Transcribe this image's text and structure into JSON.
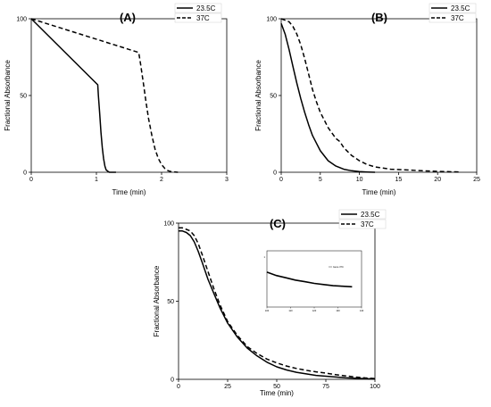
{
  "chart_data": [
    {
      "id": "A",
      "type": "line",
      "panel_label": "(A)",
      "xlabel": "Time (min)",
      "ylabel": "Fractional Absorbance",
      "xlim": [
        0,
        3
      ],
      "ylim": [
        0,
        100
      ],
      "xticks": [
        0,
        1,
        2,
        3
      ],
      "yticks": [
        0,
        50,
        100
      ],
      "grid": false,
      "legend": "top-right",
      "series": [
        {
          "name": "23.5C",
          "style": "solid",
          "x": [
            0,
            1.02,
            1.03,
            1.05,
            1.07,
            1.09,
            1.11,
            1.13,
            1.15,
            1.18,
            1.2,
            1.25,
            1.3
          ],
          "y": [
            100,
            57,
            50,
            38,
            26,
            16,
            9,
            4,
            1.5,
            0.5,
            0,
            0,
            0
          ]
        },
        {
          "name": "37C",
          "style": "dashed",
          "x": [
            0,
            1.65,
            1.68,
            1.72,
            1.76,
            1.8,
            1.85,
            1.9,
            1.95,
            2.0,
            2.05,
            2.1,
            2.15,
            2.25
          ],
          "y": [
            100,
            78,
            70,
            58,
            46,
            35,
            24,
            15,
            9,
            5,
            2.5,
            1,
            0.4,
            0
          ]
        }
      ]
    },
    {
      "id": "B",
      "type": "line",
      "panel_label": "(B)",
      "xlabel": "Time (min)",
      "ylabel": "Fractional Absorbance",
      "xlim": [
        0,
        25
      ],
      "ylim": [
        0,
        100
      ],
      "xticks": [
        0,
        5,
        10,
        15,
        20,
        25
      ],
      "yticks": [
        0,
        50,
        100
      ],
      "grid": false,
      "legend": "top-right",
      "series": [
        {
          "name": "23.5C",
          "style": "solid",
          "x": [
            0,
            0.5,
            1,
            1.5,
            2,
            2.5,
            3,
            3.5,
            4,
            4.5,
            5,
            6,
            7,
            8,
            9,
            10,
            11,
            12
          ],
          "y": [
            97,
            90,
            80,
            69,
            58,
            48,
            39,
            31,
            24,
            19,
            14,
            7.5,
            4,
            2,
            1,
            0.4,
            0.2,
            0
          ]
        },
        {
          "name": "37C",
          "style": "dashed",
          "x": [
            0,
            0.5,
            1,
            1.5,
            2,
            2.5,
            3,
            3.5,
            4,
            4.5,
            5,
            6,
            7,
            7.5,
            8,
            9,
            10,
            11,
            12,
            14,
            16,
            18,
            20,
            22,
            23
          ],
          "y": [
            100,
            99,
            98,
            95,
            90,
            83,
            74,
            64,
            54,
            46,
            39,
            29,
            22,
            20,
            16,
            11,
            7.5,
            5,
            3.5,
            2,
            1.5,
            1,
            0.6,
            0.3,
            0.2
          ]
        }
      ]
    },
    {
      "id": "C",
      "type": "line",
      "panel_label": "(C)",
      "xlabel": "Time (min)",
      "ylabel": "Fractional Absorbance",
      "xlim": [
        0,
        100
      ],
      "ylim": [
        0,
        100
      ],
      "xticks": [
        0,
        25,
        50,
        75,
        100
      ],
      "yticks": [
        0,
        50,
        100
      ],
      "grid": false,
      "legend": "top-right",
      "series": [
        {
          "name": "23.5C",
          "style": "solid",
          "x": [
            0,
            2,
            4,
            6,
            8,
            10,
            12,
            15,
            18,
            21,
            25,
            30,
            35,
            40,
            45,
            50,
            55,
            60,
            65,
            70,
            75,
            80,
            85,
            90,
            95,
            100
          ],
          "y": [
            95,
            95,
            94,
            92,
            88,
            82,
            75,
            64,
            55,
            46,
            36,
            27,
            20,
            15,
            11,
            8,
            6,
            4.5,
            3.5,
            2.5,
            2,
            1.5,
            1,
            0.7,
            0.4,
            0.2
          ]
        },
        {
          "name": "37C",
          "style": "dashed",
          "x": [
            0,
            2,
            4,
            6,
            8,
            10,
            12,
            15,
            18,
            21,
            25,
            30,
            35,
            40,
            45,
            50,
            55,
            60,
            65,
            70,
            75,
            80,
            85,
            90,
            95,
            100
          ],
          "y": [
            97,
            97,
            96,
            95,
            92,
            87,
            80,
            69,
            58,
            48,
            37,
            28,
            21,
            16.5,
            13,
            10.5,
            8.5,
            7,
            5.8,
            4.8,
            4,
            3,
            2.2,
            1.5,
            0.9,
            0.5
          ]
        }
      ],
      "inset": {
        "legend_text": "Gene 37C",
        "xtick_labels": [
          "100",
          "110",
          "120",
          "130",
          "140"
        ],
        "ytick_labels": [
          "1"
        ],
        "series": {
          "x": [
            100,
            104,
            108,
            112,
            116,
            120,
            124,
            128,
            132,
            136
          ],
          "y": [
            0.62,
            0.56,
            0.52,
            0.48,
            0.45,
            0.42,
            0.4,
            0.38,
            0.37,
            0.36
          ]
        },
        "xlim": [
          100,
          140
        ],
        "ylim": [
          0,
          1
        ]
      }
    }
  ]
}
